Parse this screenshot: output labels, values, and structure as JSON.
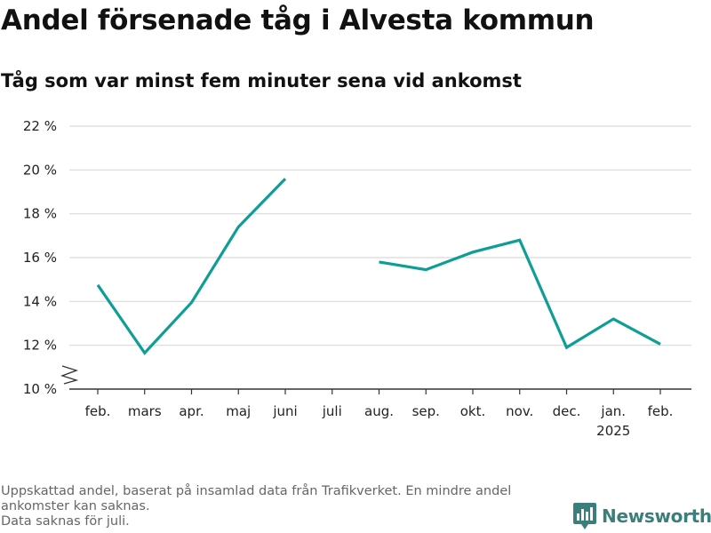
{
  "title": "Andel försenade tåg i Alvesta kommun",
  "subtitle": "Tåg som var minst fem minuter sena vid ankomst",
  "footnote": {
    "line1": "Uppskattad andel, baserat på insamlad data från Trafikverket. En mindre andel",
    "line2": "ankomster kan saknas.",
    "line3": "Data saknas för juli."
  },
  "brand": {
    "name": "Newsworthy",
    "icon": "bar-chart-speech-icon",
    "color": "#3a7f7b"
  },
  "chart_data": {
    "type": "line",
    "categories": [
      "feb.",
      "mars",
      "apr.",
      "maj",
      "juni",
      "juli",
      "aug.",
      "sep.",
      "okt.",
      "nov.",
      "dec.",
      "jan.",
      "feb."
    ],
    "category_sublabels": [
      "",
      "",
      "",
      "",
      "",
      "",
      "",
      "",
      "",
      "",
      "",
      "2025",
      ""
    ],
    "series": [
      {
        "values": [
          14.75,
          11.65,
          13.95,
          17.4,
          19.6,
          null,
          15.8,
          15.45,
          16.25,
          16.8,
          11.9,
          13.2,
          12.05
        ],
        "color": "#0e9e96"
      }
    ],
    "yticks": [
      10,
      12,
      14,
      16,
      18,
      20,
      22
    ],
    "ytick_labels": [
      "10 %",
      "12 %",
      "14 %",
      "16 %",
      "18 %",
      "20 %",
      "22 %"
    ],
    "ylim": [
      10,
      22
    ],
    "y_axis_break": true,
    "grid": true
  }
}
